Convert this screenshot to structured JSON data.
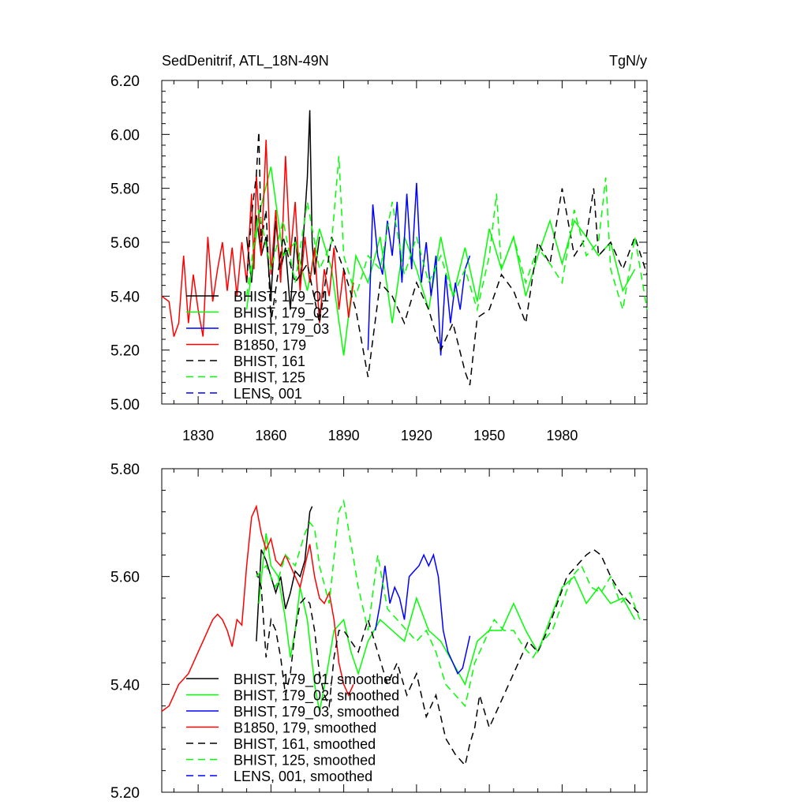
{
  "chart_data": [
    {
      "type": "line",
      "title": "SedDenitrif, ATL_18N-49N",
      "units": "TgN/y",
      "xlim": [
        1815,
        2015
      ],
      "ylim": [
        5.0,
        6.2
      ],
      "xticks": [
        1830,
        1860,
        1890,
        1920,
        1950,
        1980
      ],
      "yticks": [
        "5.00",
        "5.20",
        "5.40",
        "5.60",
        "5.80",
        "6.00",
        "6.20"
      ],
      "legend": "lower-left",
      "series": [
        {
          "name": "BHIST, 179_01",
          "color": "#000000",
          "dash": "solid",
          "x": [
            1850,
            1852,
            1854,
            1856,
            1858,
            1860,
            1862,
            1864,
            1866,
            1868,
            1870,
            1872,
            1874,
            1875,
            1876,
            1877,
            1878,
            1880
          ],
          "y": [
            5.62,
            5.45,
            5.7,
            5.55,
            5.62,
            5.4,
            5.68,
            5.5,
            5.58,
            5.35,
            5.62,
            5.45,
            5.7,
            5.84,
            6.09,
            5.6,
            5.48,
            5.62
          ]
        },
        {
          "name": "BHIST, 179_02",
          "color": "#00ff00",
          "dash": "solid",
          "x": [
            1850,
            1855,
            1860,
            1865,
            1870,
            1875,
            1880,
            1885,
            1890,
            1895,
            1900,
            1905,
            1910,
            1915,
            1920,
            1925,
            1930,
            1935,
            1940,
            1945,
            1950,
            1955,
            1960,
            1965,
            1970,
            1975,
            1980,
            1985,
            1990,
            1995,
            2000,
            2005,
            2010
          ],
          "y": [
            5.35,
            5.7,
            5.88,
            5.55,
            5.6,
            5.42,
            5.65,
            5.5,
            5.18,
            5.55,
            5.45,
            5.62,
            5.3,
            5.62,
            5.5,
            5.35,
            5.62,
            5.4,
            5.58,
            5.38,
            5.65,
            5.5,
            5.62,
            5.4,
            5.55,
            5.68,
            5.52,
            5.68,
            5.62,
            5.55,
            5.6,
            5.42,
            5.5
          ]
        },
        {
          "name": "BHIST, 179_03",
          "color": "#0000ff",
          "dash": "solid",
          "x": [
            1900,
            1902,
            1904,
            1906,
            1908,
            1910,
            1912,
            1914,
            1916,
            1918,
            1920,
            1922,
            1924,
            1926,
            1928,
            1930,
            1932,
            1934,
            1936,
            1938,
            1940,
            1942
          ],
          "y": [
            5.2,
            5.74,
            5.55,
            5.48,
            5.68,
            5.55,
            5.75,
            5.45,
            5.78,
            5.5,
            5.82,
            5.45,
            5.6,
            5.4,
            5.55,
            5.18,
            5.48,
            5.3,
            5.45,
            5.35,
            5.5,
            5.55
          ]
        },
        {
          "name": "B1850, 179",
          "color": "#ff0000",
          "dash": "solid",
          "x": [
            1815,
            1818,
            1820,
            1822,
            1824,
            1826,
            1828,
            1830,
            1832,
            1834,
            1836,
            1838,
            1840,
            1842,
            1844,
            1846,
            1848,
            1850,
            1852,
            1853,
            1854,
            1856,
            1858,
            1860,
            1862,
            1864,
            1866,
            1868,
            1870,
            1872,
            1874,
            1876,
            1878,
            1880,
            1882,
            1884,
            1886,
            1888,
            1890,
            1892,
            1894
          ],
          "y": [
            5.4,
            5.38,
            5.25,
            5.3,
            5.55,
            5.3,
            5.48,
            5.35,
            5.25,
            5.62,
            5.38,
            5.5,
            5.6,
            5.42,
            5.58,
            5.4,
            5.6,
            5.45,
            5.78,
            5.5,
            5.85,
            5.55,
            5.98,
            5.48,
            5.72,
            5.45,
            5.92,
            5.55,
            5.75,
            5.42,
            5.62,
            5.45,
            5.58,
            5.3,
            5.5,
            5.4,
            5.58,
            5.35,
            5.5,
            5.32,
            5.45
          ]
        },
        {
          "name": "BHIST, 161",
          "color": "#000000",
          "dash": "dashed",
          "x": [
            1850,
            1852,
            1854,
            1855,
            1856,
            1858,
            1860,
            1865,
            1870,
            1875,
            1880,
            1885,
            1890,
            1895,
            1900,
            1905,
            1910,
            1915,
            1920,
            1925,
            1930,
            1935,
            1940,
            1942,
            1945,
            1950,
            1955,
            1960,
            1965,
            1970,
            1975,
            1980,
            1985,
            1990,
            1993,
            1995,
            2000,
            2005,
            2010,
            2015
          ],
          "y": [
            5.45,
            5.7,
            5.85,
            6.01,
            5.6,
            5.72,
            5.3,
            5.62,
            5.45,
            5.52,
            5.3,
            5.62,
            5.5,
            5.35,
            5.1,
            5.45,
            5.4,
            5.3,
            5.45,
            5.35,
            5.2,
            5.3,
            5.12,
            5.07,
            5.32,
            5.35,
            5.48,
            5.42,
            5.3,
            5.6,
            5.52,
            5.8,
            5.55,
            5.62,
            5.8,
            5.55,
            5.6,
            5.5,
            5.62,
            5.48
          ]
        },
        {
          "name": "BHIST, 125",
          "color": "#00ff00",
          "dash": "dashed",
          "x": [
            1850,
            1855,
            1860,
            1865,
            1870,
            1875,
            1880,
            1885,
            1888,
            1890,
            1895,
            1900,
            1905,
            1910,
            1915,
            1920,
            1925,
            1930,
            1935,
            1940,
            1945,
            1950,
            1953,
            1955,
            1960,
            1965,
            1970,
            1975,
            1980,
            1985,
            1990,
            1995,
            1998,
            2000,
            2005,
            2010,
            2015
          ],
          "y": [
            5.4,
            5.72,
            5.5,
            5.68,
            5.45,
            5.75,
            5.5,
            5.6,
            5.92,
            5.55,
            5.4,
            5.55,
            5.5,
            5.75,
            5.48,
            5.62,
            5.45,
            5.55,
            5.4,
            5.5,
            5.35,
            5.55,
            5.78,
            5.5,
            5.62,
            5.45,
            5.58,
            5.52,
            5.45,
            5.72,
            5.55,
            5.6,
            5.84,
            5.5,
            5.35,
            5.62,
            5.35
          ]
        },
        {
          "name": "LENS, 001",
          "color": "#0000ff",
          "dash": "dashed",
          "x": [],
          "y": []
        }
      ]
    },
    {
      "type": "line",
      "xlim": [
        1815,
        2015
      ],
      "ylim": [
        5.2,
        5.8
      ],
      "yticks": [
        "5.20",
        "5.40",
        "5.60",
        "5.80"
      ],
      "legend": "lower-left",
      "series": [
        {
          "name": "BHIST, 179_01, smoothed",
          "color": "#000000",
          "dash": "solid",
          "x": [
            1854,
            1856,
            1858,
            1860,
            1862,
            1864,
            1866,
            1868,
            1870,
            1872,
            1874,
            1876,
            1877
          ],
          "y": [
            5.48,
            5.65,
            5.63,
            5.6,
            5.57,
            5.6,
            5.54,
            5.57,
            5.61,
            5.6,
            5.63,
            5.72,
            5.73
          ]
        },
        {
          "name": "BHIST, 179_02, smoothed",
          "color": "#00ff00",
          "dash": "solid",
          "x": [
            1855,
            1858,
            1860,
            1863,
            1866,
            1868,
            1870,
            1872,
            1875,
            1878,
            1880,
            1883,
            1886,
            1890,
            1893,
            1896,
            1900,
            1905,
            1910,
            1915,
            1920,
            1925,
            1930,
            1935,
            1940,
            1945,
            1950,
            1955,
            1960,
            1965,
            1970,
            1975,
            1980,
            1985,
            1990,
            1995,
            2000,
            2005,
            2010
          ],
          "y": [
            5.55,
            5.68,
            5.62,
            5.6,
            5.52,
            5.45,
            5.5,
            5.58,
            5.52,
            5.4,
            5.35,
            5.42,
            5.5,
            5.52,
            5.46,
            5.42,
            5.48,
            5.52,
            5.5,
            5.48,
            5.56,
            5.5,
            5.48,
            5.44,
            5.4,
            5.48,
            5.5,
            5.5,
            5.55,
            5.5,
            5.46,
            5.52,
            5.58,
            5.6,
            5.55,
            5.58,
            5.55,
            5.56,
            5.52
          ]
        },
        {
          "name": "BHIST, 179_03, smoothed",
          "color": "#0000ff",
          "dash": "solid",
          "x": [
            1903,
            1905,
            1907,
            1909,
            1911,
            1913,
            1915,
            1917,
            1919,
            1921,
            1923,
            1925,
            1927,
            1929,
            1931,
            1933,
            1935,
            1937,
            1939,
            1941,
            1942
          ],
          "y": [
            5.5,
            5.55,
            5.62,
            5.55,
            5.58,
            5.56,
            5.52,
            5.6,
            5.61,
            5.62,
            5.64,
            5.62,
            5.64,
            5.6,
            5.5,
            5.46,
            5.44,
            5.42,
            5.43,
            5.47,
            5.49
          ]
        },
        {
          "name": "B1850, 179, smoothed",
          "color": "#ff0000",
          "dash": "solid",
          "x": [
            1815,
            1818,
            1820,
            1822,
            1824,
            1826,
            1828,
            1830,
            1832,
            1834,
            1836,
            1838,
            1840,
            1842,
            1844,
            1846,
            1848,
            1850,
            1852,
            1854,
            1856,
            1858,
            1860,
            1862,
            1864,
            1866,
            1868,
            1870,
            1872,
            1874,
            1876,
            1878,
            1880,
            1882,
            1884,
            1886,
            1888,
            1890,
            1892,
            1894
          ],
          "y": [
            5.35,
            5.36,
            5.38,
            5.4,
            5.41,
            5.42,
            5.44,
            5.46,
            5.48,
            5.5,
            5.52,
            5.53,
            5.52,
            5.5,
            5.47,
            5.52,
            5.51,
            5.62,
            5.71,
            5.73,
            5.68,
            5.65,
            5.67,
            5.63,
            5.62,
            5.64,
            5.62,
            5.6,
            5.58,
            5.62,
            5.66,
            5.6,
            5.56,
            5.55,
            5.57,
            5.52,
            5.44,
            5.4,
            5.38,
            5.4
          ]
        },
        {
          "name": "BHIST, 161, smoothed",
          "color": "#000000",
          "dash": "dashed",
          "x": [
            1854,
            1856,
            1858,
            1860,
            1862,
            1864,
            1866,
            1868,
            1870,
            1872,
            1874,
            1876,
            1878,
            1880,
            1882,
            1884,
            1886,
            1888,
            1890,
            1893,
            1896,
            1900,
            1904,
            1908,
            1912,
            1916,
            1920,
            1924,
            1928,
            1932,
            1936,
            1940,
            1942,
            1944,
            1946,
            1950,
            1954,
            1958,
            1962,
            1966,
            1970,
            1974,
            1978,
            1982,
            1986,
            1990,
            1993,
            1996,
            2000,
            2004,
            2008,
            2012
          ],
          "y": [
            5.61,
            5.58,
            5.45,
            5.52,
            5.5,
            5.45,
            5.38,
            5.42,
            5.5,
            5.55,
            5.56,
            5.55,
            5.5,
            5.42,
            5.38,
            5.36,
            5.45,
            5.5,
            5.5,
            5.48,
            5.46,
            5.52,
            5.46,
            5.4,
            5.44,
            5.38,
            5.42,
            5.34,
            5.38,
            5.3,
            5.27,
            5.25,
            5.29,
            5.32,
            5.38,
            5.32,
            5.36,
            5.4,
            5.44,
            5.48,
            5.46,
            5.5,
            5.55,
            5.6,
            5.62,
            5.64,
            5.65,
            5.64,
            5.6,
            5.57,
            5.55,
            5.53
          ]
        },
        {
          "name": "BHIST, 125, smoothed",
          "color": "#00ff00",
          "dash": "dashed",
          "x": [
            1854,
            1858,
            1862,
            1866,
            1870,
            1874,
            1876,
            1878,
            1880,
            1884,
            1888,
            1890,
            1893,
            1896,
            1900,
            1904,
            1908,
            1912,
            1916,
            1920,
            1924,
            1928,
            1932,
            1936,
            1940,
            1944,
            1948,
            1952,
            1956,
            1960,
            1964,
            1968,
            1972,
            1976,
            1980,
            1984,
            1988,
            1992,
            1996,
            2000,
            2004,
            2008,
            2012
          ],
          "y": [
            5.6,
            5.62,
            5.58,
            5.64,
            5.62,
            5.68,
            5.7,
            5.69,
            5.62,
            5.55,
            5.72,
            5.74,
            5.66,
            5.58,
            5.5,
            5.64,
            5.54,
            5.52,
            5.5,
            5.48,
            5.5,
            5.46,
            5.4,
            5.38,
            5.36,
            5.44,
            5.48,
            5.52,
            5.5,
            5.5,
            5.47,
            5.45,
            5.48,
            5.5,
            5.55,
            5.6,
            5.62,
            5.58,
            5.57,
            5.6,
            5.55,
            5.57,
            5.52
          ]
        },
        {
          "name": "LENS, 001, smoothed",
          "color": "#0000ff",
          "dash": "dashed",
          "x": [],
          "y": []
        }
      ]
    }
  ]
}
